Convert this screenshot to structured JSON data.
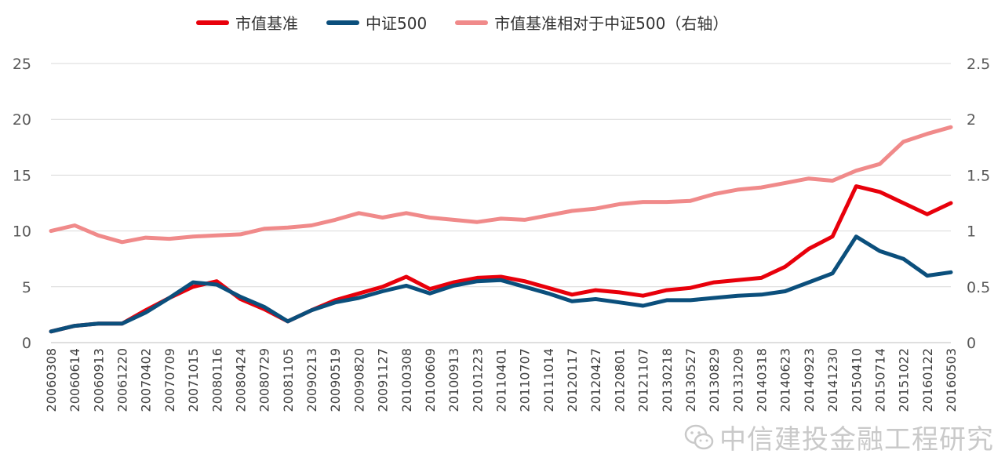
{
  "legend": {
    "series1": "市值基准",
    "series2": "中证500",
    "series3": "市值基准相对于中证500（右轴）"
  },
  "watermark": {
    "text": "中信建投金融工程研究"
  },
  "colors": {
    "series1": "#e8000b",
    "series2": "#0b4f7c",
    "series3": "#f08a8a",
    "grid": "#d9d9d9",
    "axis_text": "#595959"
  },
  "chart_data": {
    "type": "line",
    "x_tick_labels": [
      "20060308",
      "20060614",
      "20060913",
      "20061220",
      "20070402",
      "20070709",
      "20071015",
      "20080116",
      "20080424",
      "20080729",
      "20081105",
      "20090213",
      "20090519",
      "20090820",
      "20091127",
      "20100308",
      "20100609",
      "20100913",
      "20101223",
      "20110401",
      "20110707",
      "20111014",
      "20120117",
      "20120427",
      "20120801",
      "20121107",
      "20130218",
      "20130527",
      "20130829",
      "20131209",
      "20140318",
      "20140623",
      "20140923",
      "20141230",
      "20150410",
      "20150714",
      "20151022",
      "20160122",
      "20160503"
    ],
    "y_left": {
      "ticks": [
        0,
        5,
        10,
        15,
        20,
        25
      ],
      "lim": [
        0,
        25
      ]
    },
    "y_right": {
      "ticks": [
        0,
        0.5,
        1,
        1.5,
        2,
        2.5
      ],
      "lim": [
        0,
        2.5
      ]
    },
    "grid": "horizontal",
    "legend_position": "top",
    "series": [
      {
        "name": "市值基准",
        "axis": "left",
        "values": [
          1.0,
          1.5,
          1.7,
          1.7,
          2.9,
          4.0,
          5.0,
          5.5,
          3.9,
          3.0,
          1.9,
          2.9,
          3.8,
          4.4,
          5.0,
          5.9,
          4.8,
          5.4,
          5.8,
          5.9,
          5.5,
          4.9,
          4.3,
          4.7,
          4.5,
          4.2,
          4.7,
          4.9,
          5.4,
          5.6,
          5.8,
          6.8,
          8.4,
          9.5,
          14.0,
          13.5,
          12.5,
          11.5,
          12.5
        ]
      },
      {
        "name": "中证500",
        "axis": "left",
        "values": [
          1.0,
          1.5,
          1.7,
          1.7,
          2.7,
          4.0,
          5.4,
          5.2,
          4.1,
          3.2,
          1.9,
          2.9,
          3.6,
          4.0,
          4.6,
          5.1,
          4.4,
          5.1,
          5.5,
          5.6,
          5.0,
          4.4,
          3.7,
          3.9,
          3.6,
          3.3,
          3.8,
          3.8,
          4.0,
          4.2,
          4.3,
          4.6,
          5.4,
          6.2,
          9.5,
          8.2,
          7.5,
          6.0,
          6.3
        ]
      },
      {
        "name": "市值基准相对于中证500（右轴）",
        "axis": "right",
        "values": [
          1.0,
          1.05,
          0.96,
          0.9,
          0.94,
          0.93,
          0.95,
          0.96,
          0.97,
          1.02,
          1.03,
          1.05,
          1.1,
          1.16,
          1.12,
          1.16,
          1.12,
          1.1,
          1.08,
          1.11,
          1.1,
          1.14,
          1.18,
          1.2,
          1.24,
          1.26,
          1.26,
          1.27,
          1.33,
          1.37,
          1.39,
          1.43,
          1.47,
          1.45,
          1.54,
          1.6,
          1.8,
          1.87,
          1.93
        ]
      }
    ]
  }
}
